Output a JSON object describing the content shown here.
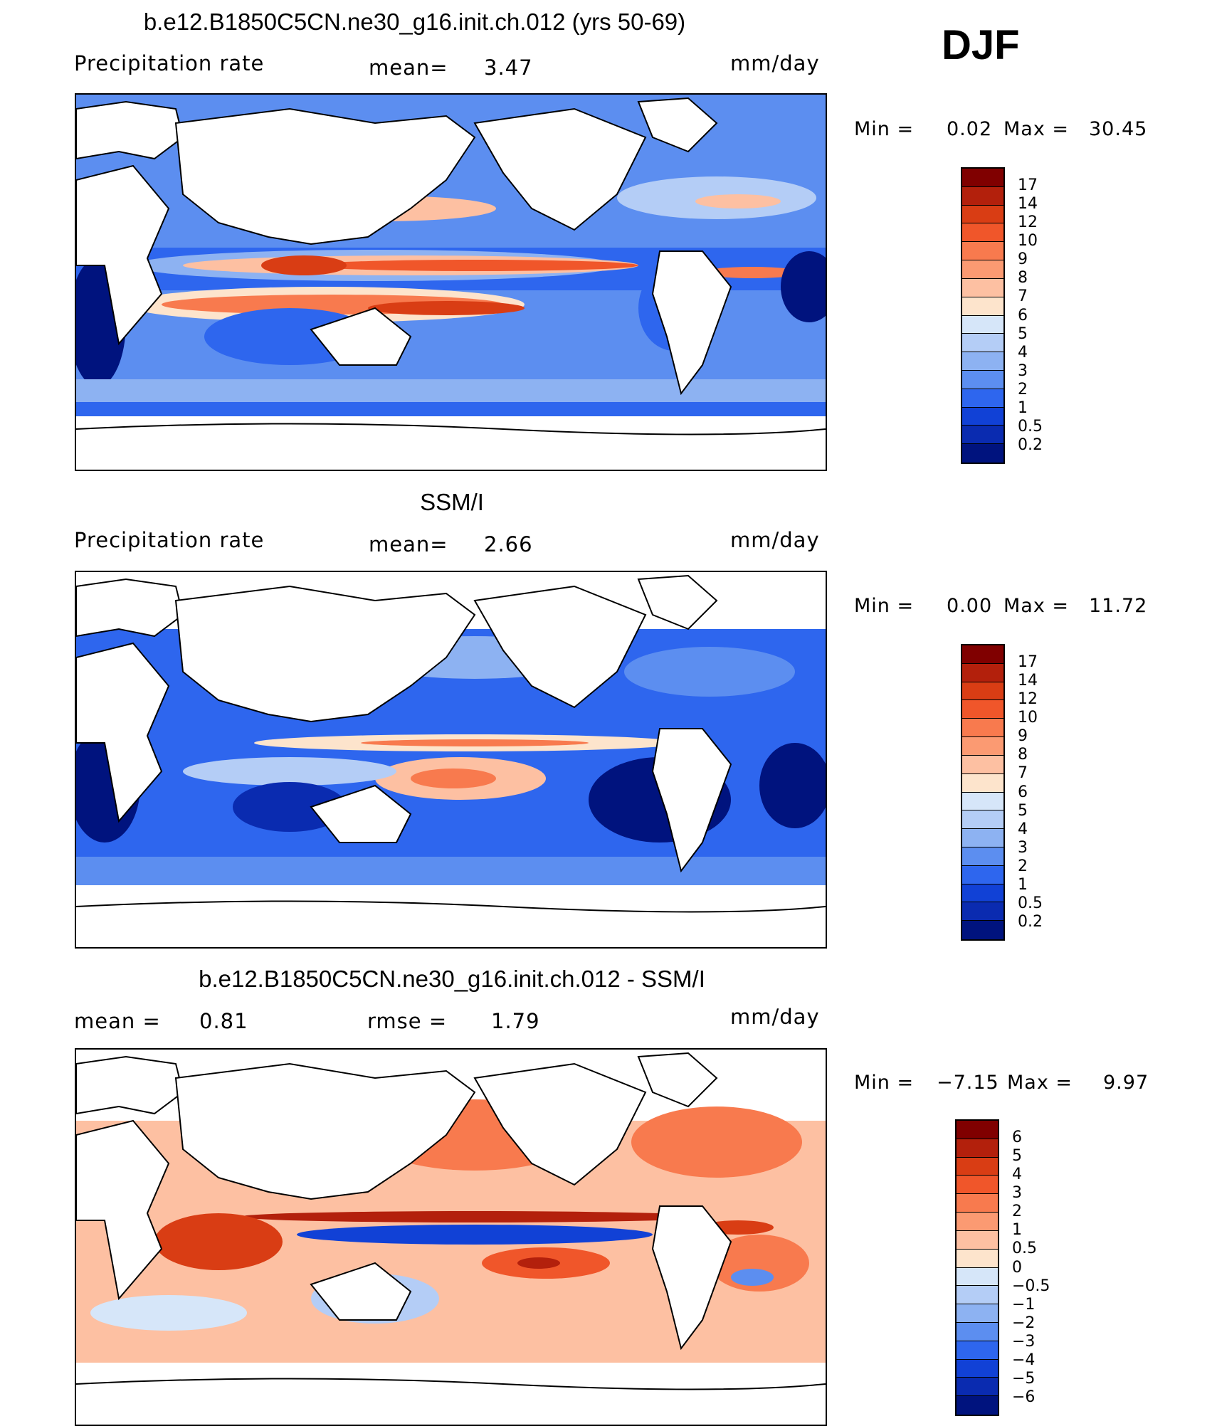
{
  "season_label": "DJF",
  "panels": [
    {
      "id": "model",
      "title": "b.e12.B1850C5CN.ne30_g16.init.ch.012 (yrs 50-69)",
      "variable": "Precipitation rate",
      "stat1_label": "mean=",
      "stat1_value": "3.47",
      "stat2_label": "",
      "stat2_value": "",
      "units": "mm/day",
      "min_label": "Min =",
      "min_value": "0.02",
      "max_label": "Max =",
      "max_value": "30.45",
      "scale": "abs"
    },
    {
      "id": "obs",
      "title": "SSM/I",
      "variable": "Precipitation rate",
      "stat1_label": "mean=",
      "stat1_value": "2.66",
      "stat2_label": "",
      "stat2_value": "",
      "units": "mm/day",
      "min_label": "Min =",
      "min_value": "0.00",
      "max_label": "Max =",
      "max_value": "11.72",
      "scale": "abs"
    },
    {
      "id": "diff",
      "title": "b.e12.B1850C5CN.ne30_g16.init.ch.012 - SSM/I",
      "variable": "",
      "stat1_label": "mean =",
      "stat1_value": "0.81",
      "stat2_label": "rmse =",
      "stat2_value": "1.79",
      "units": "mm/day",
      "min_label": "Min =",
      "min_value": "−7.15",
      "max_label": "Max =",
      "max_value": "9.97",
      "scale": "diff"
    }
  ],
  "colorbars": {
    "abs": {
      "levels": [
        "17",
        "14",
        "12",
        "10",
        "9",
        "8",
        "7",
        "6",
        "5",
        "4",
        "3",
        "2",
        "1",
        "0.5",
        "0.2"
      ],
      "colors": [
        "#800000",
        "#b3200c",
        "#d93d14",
        "#f0562a",
        "#f87a4e",
        "#fb9a72",
        "#fdc0a2",
        "#fde4cc",
        "#d6e6f9",
        "#b4cdf6",
        "#8db2f2",
        "#5c8ef0",
        "#2e66ee",
        "#1141d6",
        "#0a2bb0",
        "#00137e"
      ]
    },
    "diff": {
      "levels": [
        "6",
        "5",
        "4",
        "3",
        "2",
        "1",
        "0.5",
        "0",
        "−0.5",
        "−1",
        "−2",
        "−3",
        "−4",
        "−5",
        "−6"
      ],
      "colors": [
        "#800000",
        "#b3200c",
        "#d93d14",
        "#f0562a",
        "#f87a4e",
        "#fb9a72",
        "#fdc0a2",
        "#fde4cc",
        "#d6e6f9",
        "#b4cdf6",
        "#8db2f2",
        "#5c8ef0",
        "#2e66ee",
        "#1141d6",
        "#0a2bb0",
        "#00137e"
      ]
    }
  }
}
